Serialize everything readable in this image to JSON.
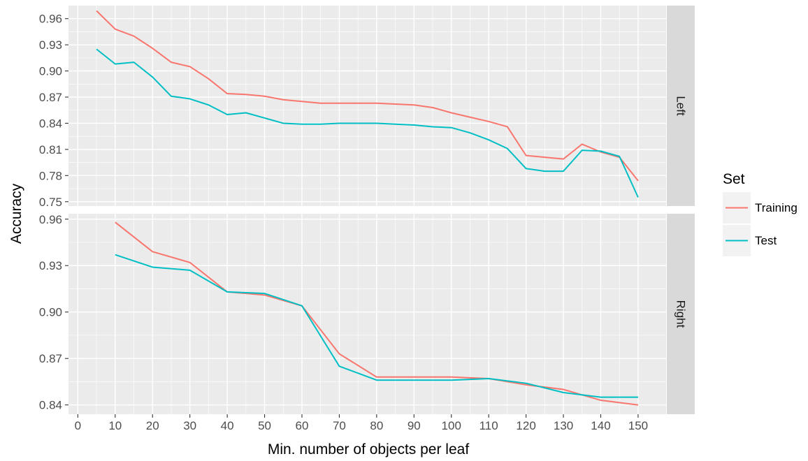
{
  "chart_data": {
    "type": "line",
    "xlabel": "Min. number of objects per leaf",
    "ylabel": "Accuracy",
    "legend": {
      "title": "Set",
      "position": "right"
    },
    "grid": true,
    "colors": {
      "Training": "#f8766d",
      "Test": "#00bfc4"
    },
    "x_ticks": [
      0,
      10,
      20,
      30,
      40,
      50,
      60,
      70,
      80,
      90,
      100,
      110,
      120,
      130,
      140,
      150
    ],
    "xlim": [
      -2.5,
      157.5
    ],
    "panels": [
      {
        "strip": "Left",
        "ylim": [
          0.745,
          0.975
        ],
        "y_ticks": [
          "0.75",
          "0.78",
          "0.81",
          "0.84",
          "0.87",
          "0.90",
          "0.93",
          "0.96"
        ],
        "series": [
          {
            "name": "Training",
            "x": [
              5,
              10,
              15,
              20,
              25,
              30,
              35,
              40,
              45,
              50,
              55,
              60,
              65,
              70,
              75,
              80,
              85,
              90,
              95,
              100,
              105,
              110,
              115,
              120,
              125,
              130,
              135,
              140,
              145,
              150
            ],
            "y": [
              0.969,
              0.948,
              0.94,
              0.926,
              0.91,
              0.905,
              0.891,
              0.874,
              0.873,
              0.871,
              0.867,
              0.865,
              0.863,
              0.863,
              0.863,
              0.863,
              0.862,
              0.861,
              0.858,
              0.852,
              0.847,
              0.842,
              0.836,
              0.803,
              0.801,
              0.799,
              0.816,
              0.807,
              0.801,
              0.774
            ]
          },
          {
            "name": "Test",
            "x": [
              5,
              10,
              15,
              20,
              25,
              30,
              35,
              40,
              45,
              50,
              55,
              60,
              65,
              70,
              75,
              80,
              85,
              90,
              95,
              100,
              105,
              110,
              115,
              120,
              125,
              130,
              135,
              140,
              145,
              150
            ],
            "y": [
              0.925,
              0.908,
              0.91,
              0.893,
              0.871,
              0.868,
              0.861,
              0.85,
              0.852,
              0.846,
              0.84,
              0.839,
              0.839,
              0.84,
              0.84,
              0.84,
              0.839,
              0.838,
              0.836,
              0.835,
              0.829,
              0.821,
              0.811,
              0.788,
              0.785,
              0.785,
              0.809,
              0.808,
              0.802,
              0.755
            ]
          }
        ]
      },
      {
        "strip": "Right",
        "ylim": [
          0.834,
          0.9635
        ],
        "y_ticks": [
          "0.84",
          "0.87",
          "0.90",
          "0.93",
          "0.96"
        ],
        "series": [
          {
            "name": "Training",
            "x": [
              10,
              20,
              30,
              40,
              50,
              60,
              70,
              80,
              90,
              100,
              110,
              120,
              130,
              140,
              150
            ],
            "y": [
              0.958,
              0.939,
              0.932,
              0.913,
              0.911,
              0.904,
              0.873,
              0.858,
              0.858,
              0.858,
              0.857,
              0.853,
              0.85,
              0.843,
              0.84
            ]
          },
          {
            "name": "Test",
            "x": [
              10,
              20,
              30,
              40,
              50,
              60,
              70,
              80,
              90,
              100,
              110,
              120,
              130,
              140,
              150
            ],
            "y": [
              0.937,
              0.929,
              0.927,
              0.913,
              0.912,
              0.904,
              0.865,
              0.856,
              0.856,
              0.856,
              0.857,
              0.854,
              0.848,
              0.845,
              0.845
            ]
          }
        ]
      }
    ]
  }
}
